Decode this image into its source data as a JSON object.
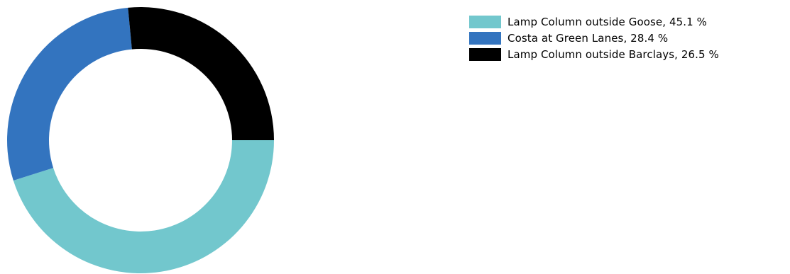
{
  "chart_data": {
    "type": "pie",
    "variant": "donut",
    "title": "",
    "slices": [
      {
        "label": "Lamp Column outside Goose",
        "value": 45.1,
        "color": "#72c7cd",
        "legend_text": "Lamp Column outside Goose, 45.1 %"
      },
      {
        "label": "Costa at Green Lanes",
        "value": 28.4,
        "color": "#3374bf",
        "legend_text": "Costa at Green Lanes, 28.4 %"
      },
      {
        "label": "Lamp Column outside Barclays",
        "value": 26.5,
        "color": "#000000",
        "legend_text": "Lamp Column outside Barclays, 26.5 %"
      }
    ],
    "unit": "%",
    "legend_placement": "top-right",
    "start_position": "3 o'clock",
    "direction": "clockwise"
  }
}
